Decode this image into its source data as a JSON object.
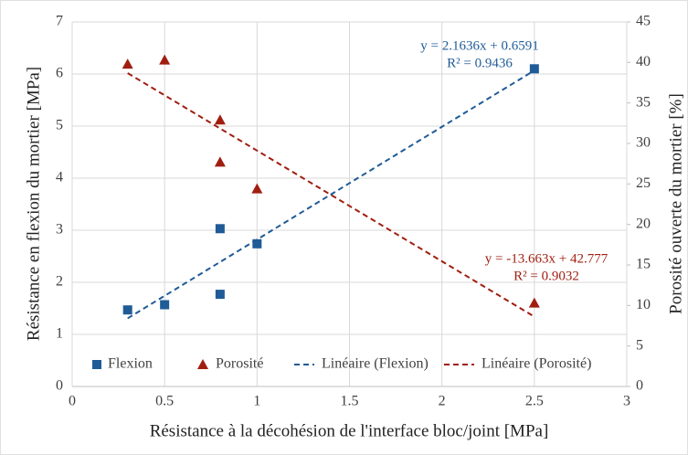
{
  "chart_data": {
    "type": "scatter",
    "xlabel": "Résistance à la décohésion de l'interface bloc/joint [MPa]",
    "ylabel": "Résistance en flexion du mortier [MPa]",
    "y2label": "Porosité ouverte du mortier [%]",
    "xlim": [
      0,
      3
    ],
    "xticks": [
      0,
      0.5,
      1,
      1.5,
      2,
      2.5,
      3
    ],
    "ylim": [
      0,
      7
    ],
    "yticks": [
      0,
      1,
      2,
      3,
      4,
      5,
      6,
      7
    ],
    "y2lim": [
      0,
      45
    ],
    "y2ticks": [
      0,
      5,
      10,
      15,
      20,
      25,
      30,
      35,
      40,
      45
    ],
    "grid": true,
    "legend": "bottom",
    "series": [
      {
        "name": "Flexion",
        "color": "#1f5b97",
        "style": "square",
        "axis": "y",
        "x": [
          0.3,
          0.5,
          0.8,
          0.8,
          1,
          2.5
        ],
        "values": [
          1.47,
          1.57,
          3.03,
          1.77,
          2.74,
          6.1
        ]
      },
      {
        "name": "Porosité",
        "color": "#a01e10",
        "style": "triangle",
        "axis": "y2",
        "x": [
          0.3,
          0.5,
          0.8,
          0.8,
          1,
          2.5
        ],
        "values": [
          39.8,
          40.3,
          32.9,
          27.7,
          24.4,
          10.3
        ]
      },
      {
        "name": "Linéaire (Flexion)",
        "color": "#1f5b97",
        "style": "dashed",
        "axis": "y",
        "x": [
          0.3,
          2.5
        ],
        "values": [
          1.308,
          6.068
        ]
      },
      {
        "name": "Linéaire (Porosité)",
        "color": "#a01e10",
        "style": "dashed",
        "axis": "y2",
        "x": [
          0.3,
          2.5
        ],
        "values": [
          38.68,
          8.62
        ]
      }
    ],
    "annotations": [
      {
        "lines": [
          "y = 2.1636x + 0.6591",
          "R² = 0.9436"
        ],
        "color": "#1f5b97"
      },
      {
        "lines": [
          "y = -13.663x + 42.777",
          "R² = 0.9032"
        ],
        "color": "#a01e10"
      }
    ]
  }
}
